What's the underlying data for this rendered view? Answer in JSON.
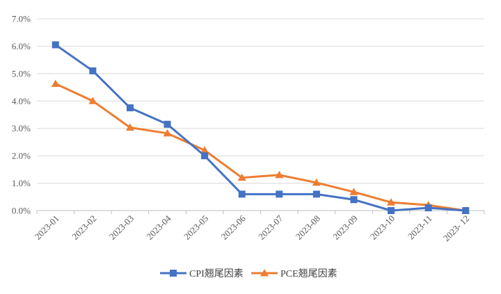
{
  "chart_data": {
    "type": "line",
    "categories": [
      "2023-01",
      "2023-02",
      "2023-03",
      "2023-04",
      "2023-05",
      "2023-06",
      "2023-07",
      "2023-08",
      "2023-09",
      "2023-10",
      "2023-11",
      "2023- 12"
    ],
    "series": [
      {
        "name": "CPI翘尾因素",
        "color": "#4472C4",
        "marker": "square",
        "values": [
          6.05,
          5.1,
          3.75,
          3.15,
          2.0,
          0.6,
          0.6,
          0.6,
          0.4,
          0.0,
          0.1,
          0.0
        ]
      },
      {
        "name": "PCE翘尾因素",
        "color": "#ED7D31",
        "marker": "triangle",
        "values": [
          4.63,
          4.0,
          3.03,
          2.82,
          2.2,
          1.2,
          1.3,
          1.02,
          0.68,
          0.3,
          0.2,
          0.0
        ]
      }
    ],
    "ylim": [
      0,
      7
    ],
    "ytick_labels": [
      "0.0%",
      "1.0%",
      "2.0%",
      "3.0%",
      "4.0%",
      "5.0%",
      "6.0%",
      "7.0%"
    ],
    "grid": true,
    "legend_position": "bottom"
  }
}
